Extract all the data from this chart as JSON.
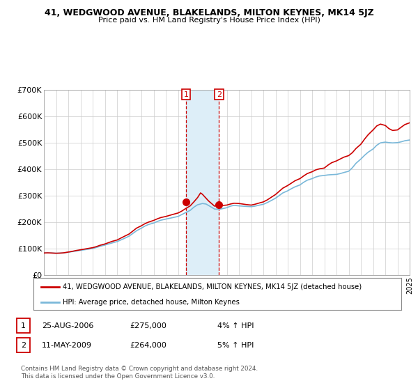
{
  "title": "41, WEDGWOOD AVENUE, BLAKELANDS, MILTON KEYNES, MK14 5JZ",
  "subtitle": "Price paid vs. HM Land Registry's House Price Index (HPI)",
  "legend_line1": "41, WEDGWOOD AVENUE, BLAKELANDS, MILTON KEYNES, MK14 5JZ (detached house)",
  "legend_line2": "HPI: Average price, detached house, Milton Keynes",
  "annotation1_date": "25-AUG-2006",
  "annotation1_price": "£275,000",
  "annotation1_hpi": "4% ↑ HPI",
  "annotation1_year": 2006.65,
  "annotation1_value": 275000,
  "annotation2_date": "11-MAY-2009",
  "annotation2_price": "£264,000",
  "annotation2_hpi": "5% ↑ HPI",
  "annotation2_year": 2009.36,
  "annotation2_value": 264000,
  "footer_line1": "Contains HM Land Registry data © Crown copyright and database right 2024.",
  "footer_line2": "This data is licensed under the Open Government Licence v3.0.",
  "hpi_color": "#7ab8d9",
  "price_color": "#cc0000",
  "shading_color": "#ddeef8",
  "vline_color": "#cc0000",
  "ylim": [
    0,
    700000
  ],
  "yticks": [
    0,
    100000,
    200000,
    300000,
    400000,
    500000,
    600000,
    700000
  ],
  "ytick_labels": [
    "£0",
    "£100K",
    "£200K",
    "£300K",
    "£400K",
    "£500K",
    "£600K",
    "£700K"
  ],
  "hpi_data": [
    [
      1995,
      83000
    ],
    [
      1995.3,
      83500
    ],
    [
      1995.6,
      83000
    ],
    [
      1996,
      82000
    ],
    [
      1996.3,
      82500
    ],
    [
      1996.6,
      83000
    ],
    [
      1997,
      86000
    ],
    [
      1997.3,
      88000
    ],
    [
      1997.6,
      90000
    ],
    [
      1998,
      93000
    ],
    [
      1998.3,
      95000
    ],
    [
      1998.6,
      97000
    ],
    [
      1999,
      100000
    ],
    [
      1999.3,
      104000
    ],
    [
      1999.6,
      108000
    ],
    [
      2000,
      113000
    ],
    [
      2000.3,
      117000
    ],
    [
      2000.6,
      121000
    ],
    [
      2001,
      126000
    ],
    [
      2001.3,
      132000
    ],
    [
      2001.6,
      138000
    ],
    [
      2002,
      147000
    ],
    [
      2002.3,
      157000
    ],
    [
      2002.6,
      167000
    ],
    [
      2003,
      177000
    ],
    [
      2003.3,
      185000
    ],
    [
      2003.6,
      191000
    ],
    [
      2004,
      196000
    ],
    [
      2004.3,
      202000
    ],
    [
      2004.6,
      207000
    ],
    [
      2005,
      211000
    ],
    [
      2005.3,
      214000
    ],
    [
      2005.6,
      217000
    ],
    [
      2006,
      221000
    ],
    [
      2006.3,
      228000
    ],
    [
      2006.6,
      235000
    ],
    [
      2007,
      244000
    ],
    [
      2007.3,
      256000
    ],
    [
      2007.6,
      265000
    ],
    [
      2008,
      270000
    ],
    [
      2008.3,
      268000
    ],
    [
      2008.6,
      260000
    ],
    [
      2009,
      249000
    ],
    [
      2009.3,
      248000
    ],
    [
      2009.6,
      250000
    ],
    [
      2010,
      254000
    ],
    [
      2010.3,
      260000
    ],
    [
      2010.6,
      263000
    ],
    [
      2011,
      261000
    ],
    [
      2011.3,
      260000
    ],
    [
      2011.6,
      259000
    ],
    [
      2012,
      258000
    ],
    [
      2012.3,
      260000
    ],
    [
      2012.6,
      263000
    ],
    [
      2013,
      267000
    ],
    [
      2013.3,
      273000
    ],
    [
      2013.6,
      280000
    ],
    [
      2014,
      290000
    ],
    [
      2014.3,
      300000
    ],
    [
      2014.6,
      310000
    ],
    [
      2015,
      318000
    ],
    [
      2015.3,
      326000
    ],
    [
      2015.6,
      333000
    ],
    [
      2016,
      340000
    ],
    [
      2016.3,
      350000
    ],
    [
      2016.6,
      358000
    ],
    [
      2017,
      364000
    ],
    [
      2017.3,
      370000
    ],
    [
      2017.6,
      374000
    ],
    [
      2018,
      376000
    ],
    [
      2018.3,
      378000
    ],
    [
      2018.6,
      379000
    ],
    [
      2019,
      380000
    ],
    [
      2019.3,
      383000
    ],
    [
      2019.6,
      387000
    ],
    [
      2020,
      392000
    ],
    [
      2020.3,
      405000
    ],
    [
      2020.6,
      422000
    ],
    [
      2021,
      438000
    ],
    [
      2021.3,
      452000
    ],
    [
      2021.6,
      464000
    ],
    [
      2022,
      476000
    ],
    [
      2022.3,
      490000
    ],
    [
      2022.6,
      499000
    ],
    [
      2023,
      502000
    ],
    [
      2023.3,
      500000
    ],
    [
      2023.6,
      499000
    ],
    [
      2024,
      500000
    ],
    [
      2024.3,
      503000
    ],
    [
      2024.6,
      507000
    ],
    [
      2025,
      510000
    ]
  ],
  "price_data": [
    [
      1995,
      83000
    ],
    [
      1995.3,
      83500
    ],
    [
      1995.6,
      83000
    ],
    [
      1996,
      82000
    ],
    [
      1996.3,
      82500
    ],
    [
      1996.6,
      83500
    ],
    [
      1997,
      86500
    ],
    [
      1997.3,
      89000
    ],
    [
      1997.6,
      92000
    ],
    [
      1998,
      95000
    ],
    [
      1998.3,
      97500
    ],
    [
      1998.6,
      100000
    ],
    [
      1999,
      103000
    ],
    [
      1999.3,
      107000
    ],
    [
      1999.6,
      112000
    ],
    [
      2000,
      117000
    ],
    [
      2000.3,
      122000
    ],
    [
      2000.6,
      127000
    ],
    [
      2001,
      132000
    ],
    [
      2001.3,
      139000
    ],
    [
      2001.6,
      146000
    ],
    [
      2002,
      155000
    ],
    [
      2002.3,
      166000
    ],
    [
      2002.6,
      177000
    ],
    [
      2003,
      186000
    ],
    [
      2003.3,
      194000
    ],
    [
      2003.6,
      200000
    ],
    [
      2004,
      206000
    ],
    [
      2004.3,
      212000
    ],
    [
      2004.6,
      217000
    ],
    [
      2005,
      221000
    ],
    [
      2005.3,
      225000
    ],
    [
      2005.6,
      229000
    ],
    [
      2006,
      234000
    ],
    [
      2006.3,
      241000
    ],
    [
      2006.6,
      250000
    ],
    [
      2007,
      261000
    ],
    [
      2007.3,
      276000
    ],
    [
      2007.6,
      292000
    ],
    [
      2007.85,
      310000
    ],
    [
      2008,
      305000
    ],
    [
      2008.2,
      295000
    ],
    [
      2008.5,
      280000
    ],
    [
      2009,
      260000
    ],
    [
      2009.36,
      264000
    ],
    [
      2009.5,
      262000
    ],
    [
      2010,
      264000
    ],
    [
      2010.3,
      268000
    ],
    [
      2010.6,
      271000
    ],
    [
      2011,
      270000
    ],
    [
      2011.3,
      268000
    ],
    [
      2011.6,
      266000
    ],
    [
      2012,
      264000
    ],
    [
      2012.3,
      267000
    ],
    [
      2012.6,
      271000
    ],
    [
      2013,
      276000
    ],
    [
      2013.3,
      283000
    ],
    [
      2013.6,
      292000
    ],
    [
      2014,
      304000
    ],
    [
      2014.3,
      316000
    ],
    [
      2014.6,
      328000
    ],
    [
      2015,
      338000
    ],
    [
      2015.3,
      347000
    ],
    [
      2015.6,
      356000
    ],
    [
      2016,
      364000
    ],
    [
      2016.3,
      374000
    ],
    [
      2016.6,
      383000
    ],
    [
      2017,
      390000
    ],
    [
      2017.3,
      397000
    ],
    [
      2017.6,
      401000
    ],
    [
      2018,
      404000
    ],
    [
      2018.3,
      415000
    ],
    [
      2018.6,
      424000
    ],
    [
      2019,
      431000
    ],
    [
      2019.3,
      438000
    ],
    [
      2019.6,
      445000
    ],
    [
      2020,
      451000
    ],
    [
      2020.3,
      462000
    ],
    [
      2020.6,
      478000
    ],
    [
      2021,
      494000
    ],
    [
      2021.3,
      513000
    ],
    [
      2021.6,
      530000
    ],
    [
      2022,
      548000
    ],
    [
      2022.3,
      563000
    ],
    [
      2022.6,
      570000
    ],
    [
      2023,
      565000
    ],
    [
      2023.3,
      553000
    ],
    [
      2023.6,
      546000
    ],
    [
      2024,
      548000
    ],
    [
      2024.3,
      558000
    ],
    [
      2024.6,
      568000
    ],
    [
      2025,
      575000
    ]
  ]
}
